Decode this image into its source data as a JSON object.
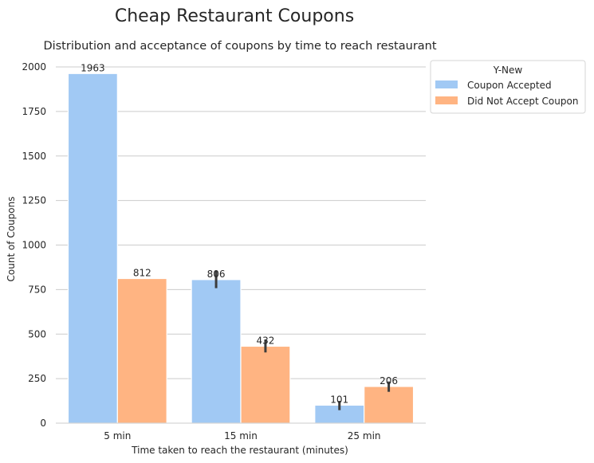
{
  "chart_data": {
    "type": "bar",
    "title": "Cheap Restaurant Coupons",
    "subtitle": "Distribution and acceptance of coupons by time to reach restaurant",
    "xlabel": "Time taken to reach the restaurant (minutes)",
    "ylabel": "Count of Coupons",
    "categories": [
      "5 min",
      "15 min",
      "25 min"
    ],
    "ylim": [
      0,
      2050
    ],
    "yticks": [
      0,
      250,
      500,
      750,
      1000,
      1250,
      1500,
      1750,
      2000
    ],
    "grid": true,
    "legend": {
      "title": "Y-New",
      "placement": "outside-top-right"
    },
    "series": [
      {
        "name": "Coupon Accepted",
        "color": "#a1c9f4",
        "values": [
          1963,
          806,
          101
        ],
        "labels": [
          "1963",
          "806",
          "101"
        ],
        "error": [
          null,
          [
            758,
            856
          ],
          [
            73,
            125
          ]
        ]
      },
      {
        "name": "Did Not Accept Coupon",
        "color": "#ffb482",
        "values": [
          812,
          432,
          206
        ],
        "labels": [
          "812",
          "432",
          "206"
        ],
        "error": [
          null,
          [
            397,
            468
          ],
          [
            176,
            234
          ]
        ]
      }
    ]
  }
}
